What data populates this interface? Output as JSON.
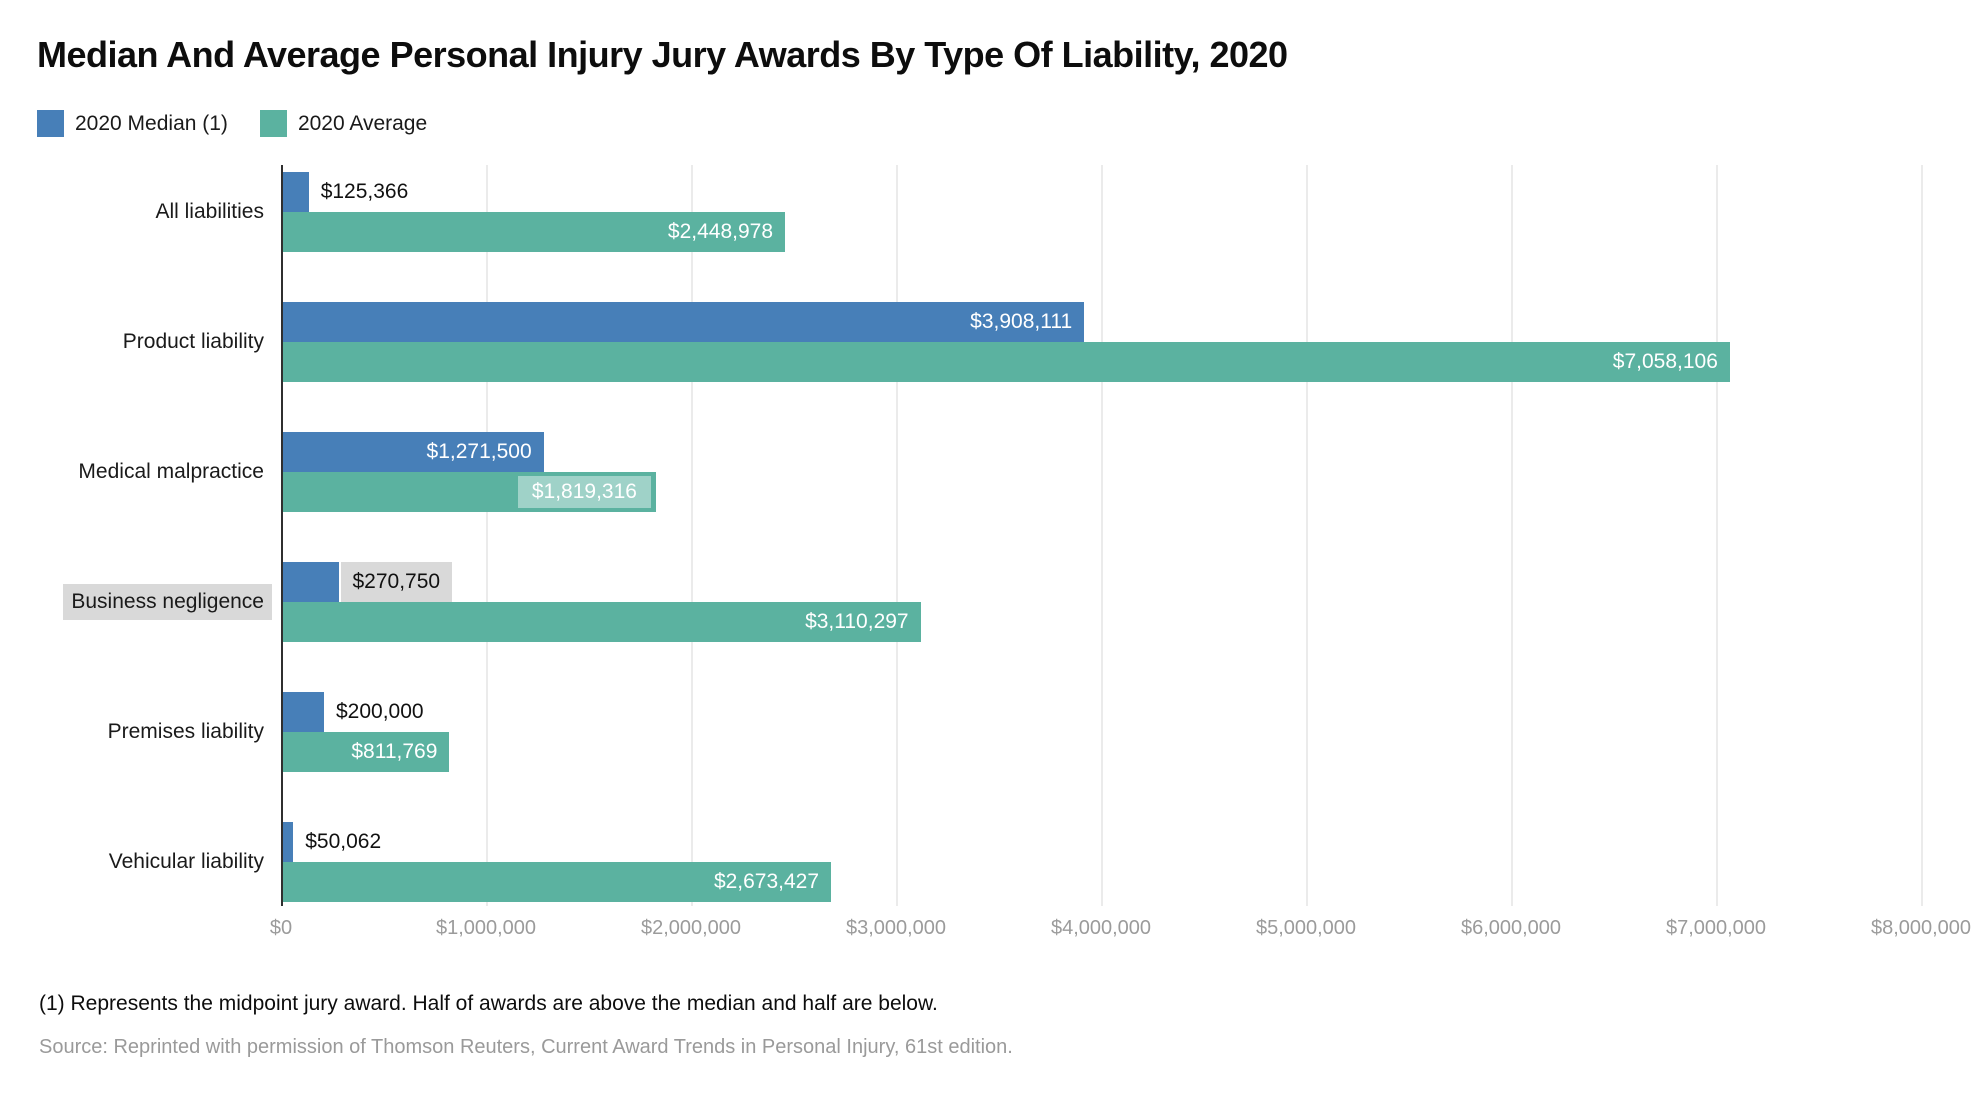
{
  "title": "Median And Average Personal Injury Jury Awards By Type Of Liability, 2020",
  "legend": [
    {
      "label": "2020 Median (1)",
      "color": "#477fb8"
    },
    {
      "label": "2020 Average",
      "color": "#5bb2a0"
    }
  ],
  "chart_data": {
    "type": "bar",
    "orientation": "horizontal",
    "title": "Median And Average Personal Injury Jury Awards By Type Of Liability, 2020",
    "categories": [
      "All liabilities",
      "Product liability",
      "Medical malpractice",
      "Business negligence",
      "Premises liability",
      "Vehicular liability"
    ],
    "series": [
      {
        "name": "2020 Median (1)",
        "color": "#477fb8",
        "values": [
          125366,
          3908111,
          1271500,
          270750,
          200000,
          50062
        ],
        "labels": [
          "$125,366",
          "$3,908,111",
          "$1,271,500",
          "$270,750",
          "$200,000",
          "$50,062"
        ],
        "label_styles": [
          "outside",
          "inside",
          "inside",
          "outside-gray",
          "outside",
          "outside"
        ]
      },
      {
        "name": "2020 Average",
        "color": "#5bb2a0",
        "values": [
          2448978,
          7058106,
          1819316,
          3110297,
          811769,
          2673427
        ],
        "labels": [
          "$2,448,978",
          "$7,058,106",
          "$1,819,316",
          "$3,110,297",
          "$811,769",
          "$2,673,427"
        ],
        "label_styles": [
          "inside",
          "inside",
          "inside-light",
          "inside",
          "inside",
          "inside"
        ]
      }
    ],
    "xlim": [
      0,
      8000000
    ],
    "x_ticks": [
      "$0",
      "$1,000,000",
      "$2,000,000",
      "$3,000,000",
      "$4,000,000",
      "$5,000,000",
      "$6,000,000",
      "$7,000,000",
      "$8,000,000"
    ],
    "grid": true,
    "legend_position": "top-left",
    "highlighted_category_index": 3
  },
  "styles": {
    "highlight_bg": "#d9d9d9",
    "label_light_bg": "rgba(255,255,255,0.42)",
    "grid_color": "#ebebeb",
    "axis_color": "#2f2f2f",
    "tick_color": "#9b9b9b",
    "source_color": "#9a9a9a"
  },
  "footnote": "(1) Represents the midpoint jury award. Half of awards are above the median and half are below.",
  "source": "Source: Reprinted with permission of Thomson Reuters, Current Award Trends in Personal Injury, 61st edition."
}
